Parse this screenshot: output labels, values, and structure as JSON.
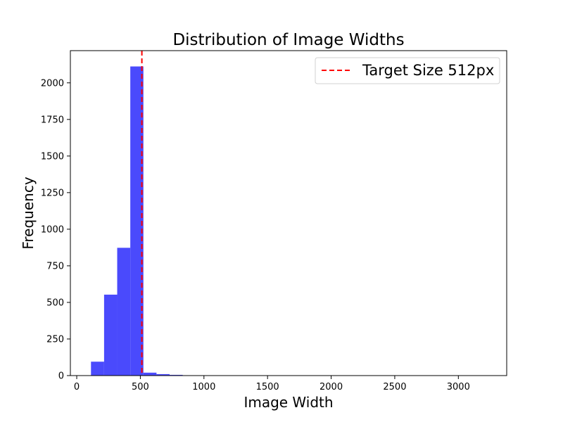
{
  "chart_data": {
    "type": "bar",
    "title": "Distribution of Image Widths",
    "xlabel": "Image Width",
    "ylabel": "Frequency",
    "xlim": [
      -50,
      3380
    ],
    "ylim": [
      0,
      2220
    ],
    "xticks": [
      0,
      500,
      1000,
      1500,
      2000,
      2500,
      3000
    ],
    "yticks": [
      0,
      250,
      500,
      750,
      1000,
      1250,
      1500,
      1750,
      2000
    ],
    "bar_color": "#4a4afc",
    "bins": [
      {
        "x0": 112,
        "x1": 215,
        "count": 95
      },
      {
        "x0": 215,
        "x1": 318,
        "count": 553
      },
      {
        "x0": 318,
        "x1": 421,
        "count": 873
      },
      {
        "x0": 421,
        "x1": 524,
        "count": 2112
      },
      {
        "x0": 524,
        "x1": 627,
        "count": 20
      },
      {
        "x0": 627,
        "x1": 730,
        "count": 10
      },
      {
        "x0": 730,
        "x1": 833,
        "count": 5
      },
      {
        "x0": 833,
        "x1": 936,
        "count": 2
      },
      {
        "x0": 936,
        "x1": 1039,
        "count": 1
      },
      {
        "x0": 1039,
        "x1": 1142,
        "count": 1
      }
    ],
    "reference_line": {
      "x": 512,
      "label": "Target Size 512px",
      "color": "#ff0000",
      "style": "dashed"
    },
    "legend_placement": "top-right",
    "grid": false
  }
}
